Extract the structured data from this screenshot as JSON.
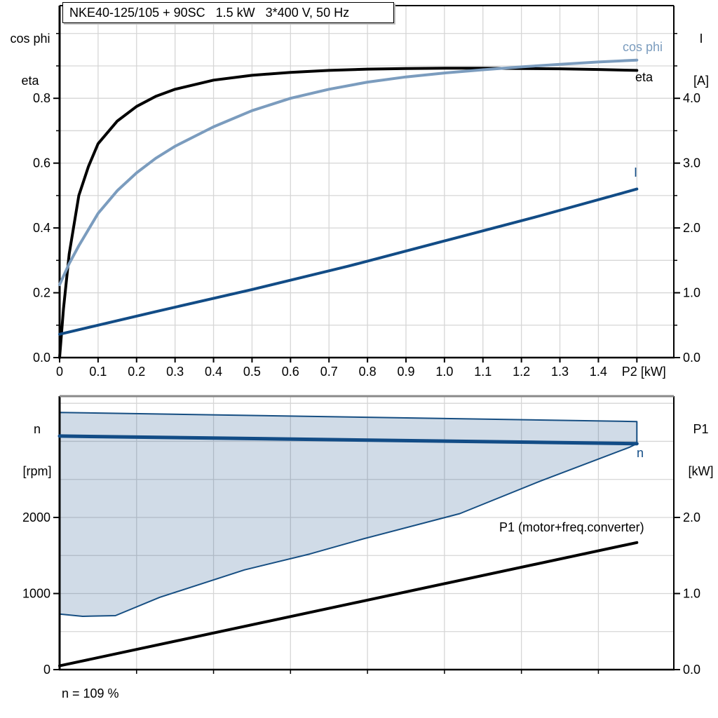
{
  "title_box": {
    "text": "NKE40-125/105 + 90SC   1.5 kW   3*400 V, 50 Hz"
  },
  "footnote": "n = 109 %",
  "colors": {
    "black": "#000000",
    "steel_blue": "#7B9CBE",
    "dark_blue": "#124C86",
    "band_fill": "rgba(18,76,134,0.20)",
    "band_edge": "#164E82",
    "grid": "#D6D6D6",
    "border_gray": "#8A8A8A"
  },
  "chart_data": [
    {
      "type": "line",
      "title": "NKE40-125/105 + 90SC   1.5 kW   3*400 V, 50 Hz",
      "y_left_header": [
        "cos phi",
        "eta"
      ],
      "y_right_header": [
        "I",
        "[A]"
      ],
      "x_axis": {
        "label": "P2 [kW]",
        "min": 0,
        "max": 1.596,
        "tick_step": 0.1,
        "label_at": 1.5,
        "tick_labels": [
          "0",
          "0.1",
          "0.2",
          "0.3",
          "0.4",
          "0.5",
          "0.6",
          "0.7",
          "0.8",
          "0.9",
          "1.0",
          "1.1",
          "1.2",
          "1.3",
          "1.4"
        ]
      },
      "y_left": {
        "min": 0,
        "max": 1.086,
        "ticks": [
          0,
          0.2,
          0.4,
          0.6,
          0.8
        ],
        "tick_labels": [
          "0.0",
          "0.2",
          "0.4",
          "0.6",
          "0.8"
        ],
        "minor_step": 0.1
      },
      "y_right": {
        "min": 0,
        "max": 5.43,
        "ticks": [
          0,
          1,
          2,
          3,
          4
        ],
        "tick_labels": [
          "0.0",
          "1.0",
          "2.0",
          "3.0",
          "4.0"
        ],
        "minor_step": 0.5
      },
      "grid": {
        "x_step": 0.1,
        "y_step": 0.1,
        "y_axis": "left",
        "on": true
      },
      "series": [
        {
          "name": "eta",
          "label": "eta",
          "axis": "left",
          "color_key": "black",
          "width": 4,
          "x": [
            0,
            0.01,
            0.025,
            0.05,
            0.075,
            0.1,
            0.15,
            0.2,
            0.25,
            0.3,
            0.4,
            0.5,
            0.6,
            0.7,
            0.8,
            0.9,
            1.0,
            1.1,
            1.2,
            1.3,
            1.4,
            1.5
          ],
          "y": [
            0,
            0.15,
            0.32,
            0.5,
            0.59,
            0.66,
            0.73,
            0.775,
            0.806,
            0.828,
            0.856,
            0.871,
            0.88,
            0.886,
            0.89,
            0.892,
            0.893,
            0.893,
            0.892,
            0.891,
            0.889,
            0.886
          ]
        },
        {
          "name": "cos_phi",
          "label": "cos phi",
          "axis": "left",
          "color_key": "steel_blue",
          "width": 4,
          "x": [
            0,
            0.025,
            0.05,
            0.1,
            0.15,
            0.2,
            0.25,
            0.3,
            0.4,
            0.5,
            0.6,
            0.7,
            0.8,
            0.9,
            1.0,
            1.1,
            1.2,
            1.3,
            1.4,
            1.5
          ],
          "y": [
            0.225,
            0.29,
            0.345,
            0.445,
            0.515,
            0.57,
            0.615,
            0.652,
            0.712,
            0.762,
            0.8,
            0.828,
            0.85,
            0.866,
            0.878,
            0.888,
            0.897,
            0.905,
            0.912,
            0.918
          ]
        },
        {
          "name": "I",
          "label": "I",
          "axis": "right",
          "color_key": "dark_blue",
          "width": 4,
          "x": [
            0,
            0.25,
            0.5,
            0.75,
            1.0,
            1.25,
            1.5
          ],
          "y": [
            0.36,
            0.71,
            1.05,
            1.41,
            1.8,
            2.19,
            2.6
          ]
        }
      ]
    },
    {
      "type": "line",
      "y_left_header": [
        "n",
        "[rpm]"
      ],
      "y_right_header": [
        "P1",
        "[kW]"
      ],
      "x_axis": {
        "min": 0,
        "max": 1.596,
        "tick_step": 0.2,
        "tick_labels": []
      },
      "y_left": {
        "min": 0,
        "max": 3594,
        "ticks": [
          0,
          1000,
          2000
        ],
        "tick_labels": [
          "0",
          "1000",
          "2000"
        ]
      },
      "y_right": {
        "min": 0,
        "max": 3.594,
        "ticks": [
          0,
          1,
          2
        ],
        "tick_labels": [
          "0.0",
          "1.0",
          "2.0"
        ]
      },
      "grid": {
        "x_step": 0.2,
        "y_step": 0.5,
        "y_axis": "right",
        "on": true
      },
      "band": {
        "name": "speed-operating-range",
        "axis": "left",
        "points": [
          [
            0,
            3380
          ],
          [
            1.5,
            3260
          ],
          [
            1.5,
            2970
          ],
          [
            1.48,
            2920
          ],
          [
            1.25,
            2480
          ],
          [
            1.04,
            2050
          ],
          [
            0.79,
            1720
          ],
          [
            0.65,
            1520
          ],
          [
            0.48,
            1310
          ],
          [
            0.26,
            950
          ],
          [
            0.145,
            710
          ],
          [
            0.06,
            700
          ],
          [
            0,
            730
          ]
        ]
      },
      "series": [
        {
          "name": "n",
          "label": "n",
          "axis": "left",
          "color_key": "dark_blue",
          "width": 5,
          "x": [
            0,
            1.5
          ],
          "y": [
            3070,
            2970
          ]
        },
        {
          "name": "P1",
          "label": "P1 (motor+freq.converter)",
          "axis": "right",
          "color_key": "black",
          "width": 4,
          "x": [
            0,
            0.75,
            1.5
          ],
          "y": [
            0.05,
            0.86,
            1.67
          ]
        }
      ],
      "footnote": "n = 109 %"
    }
  ]
}
